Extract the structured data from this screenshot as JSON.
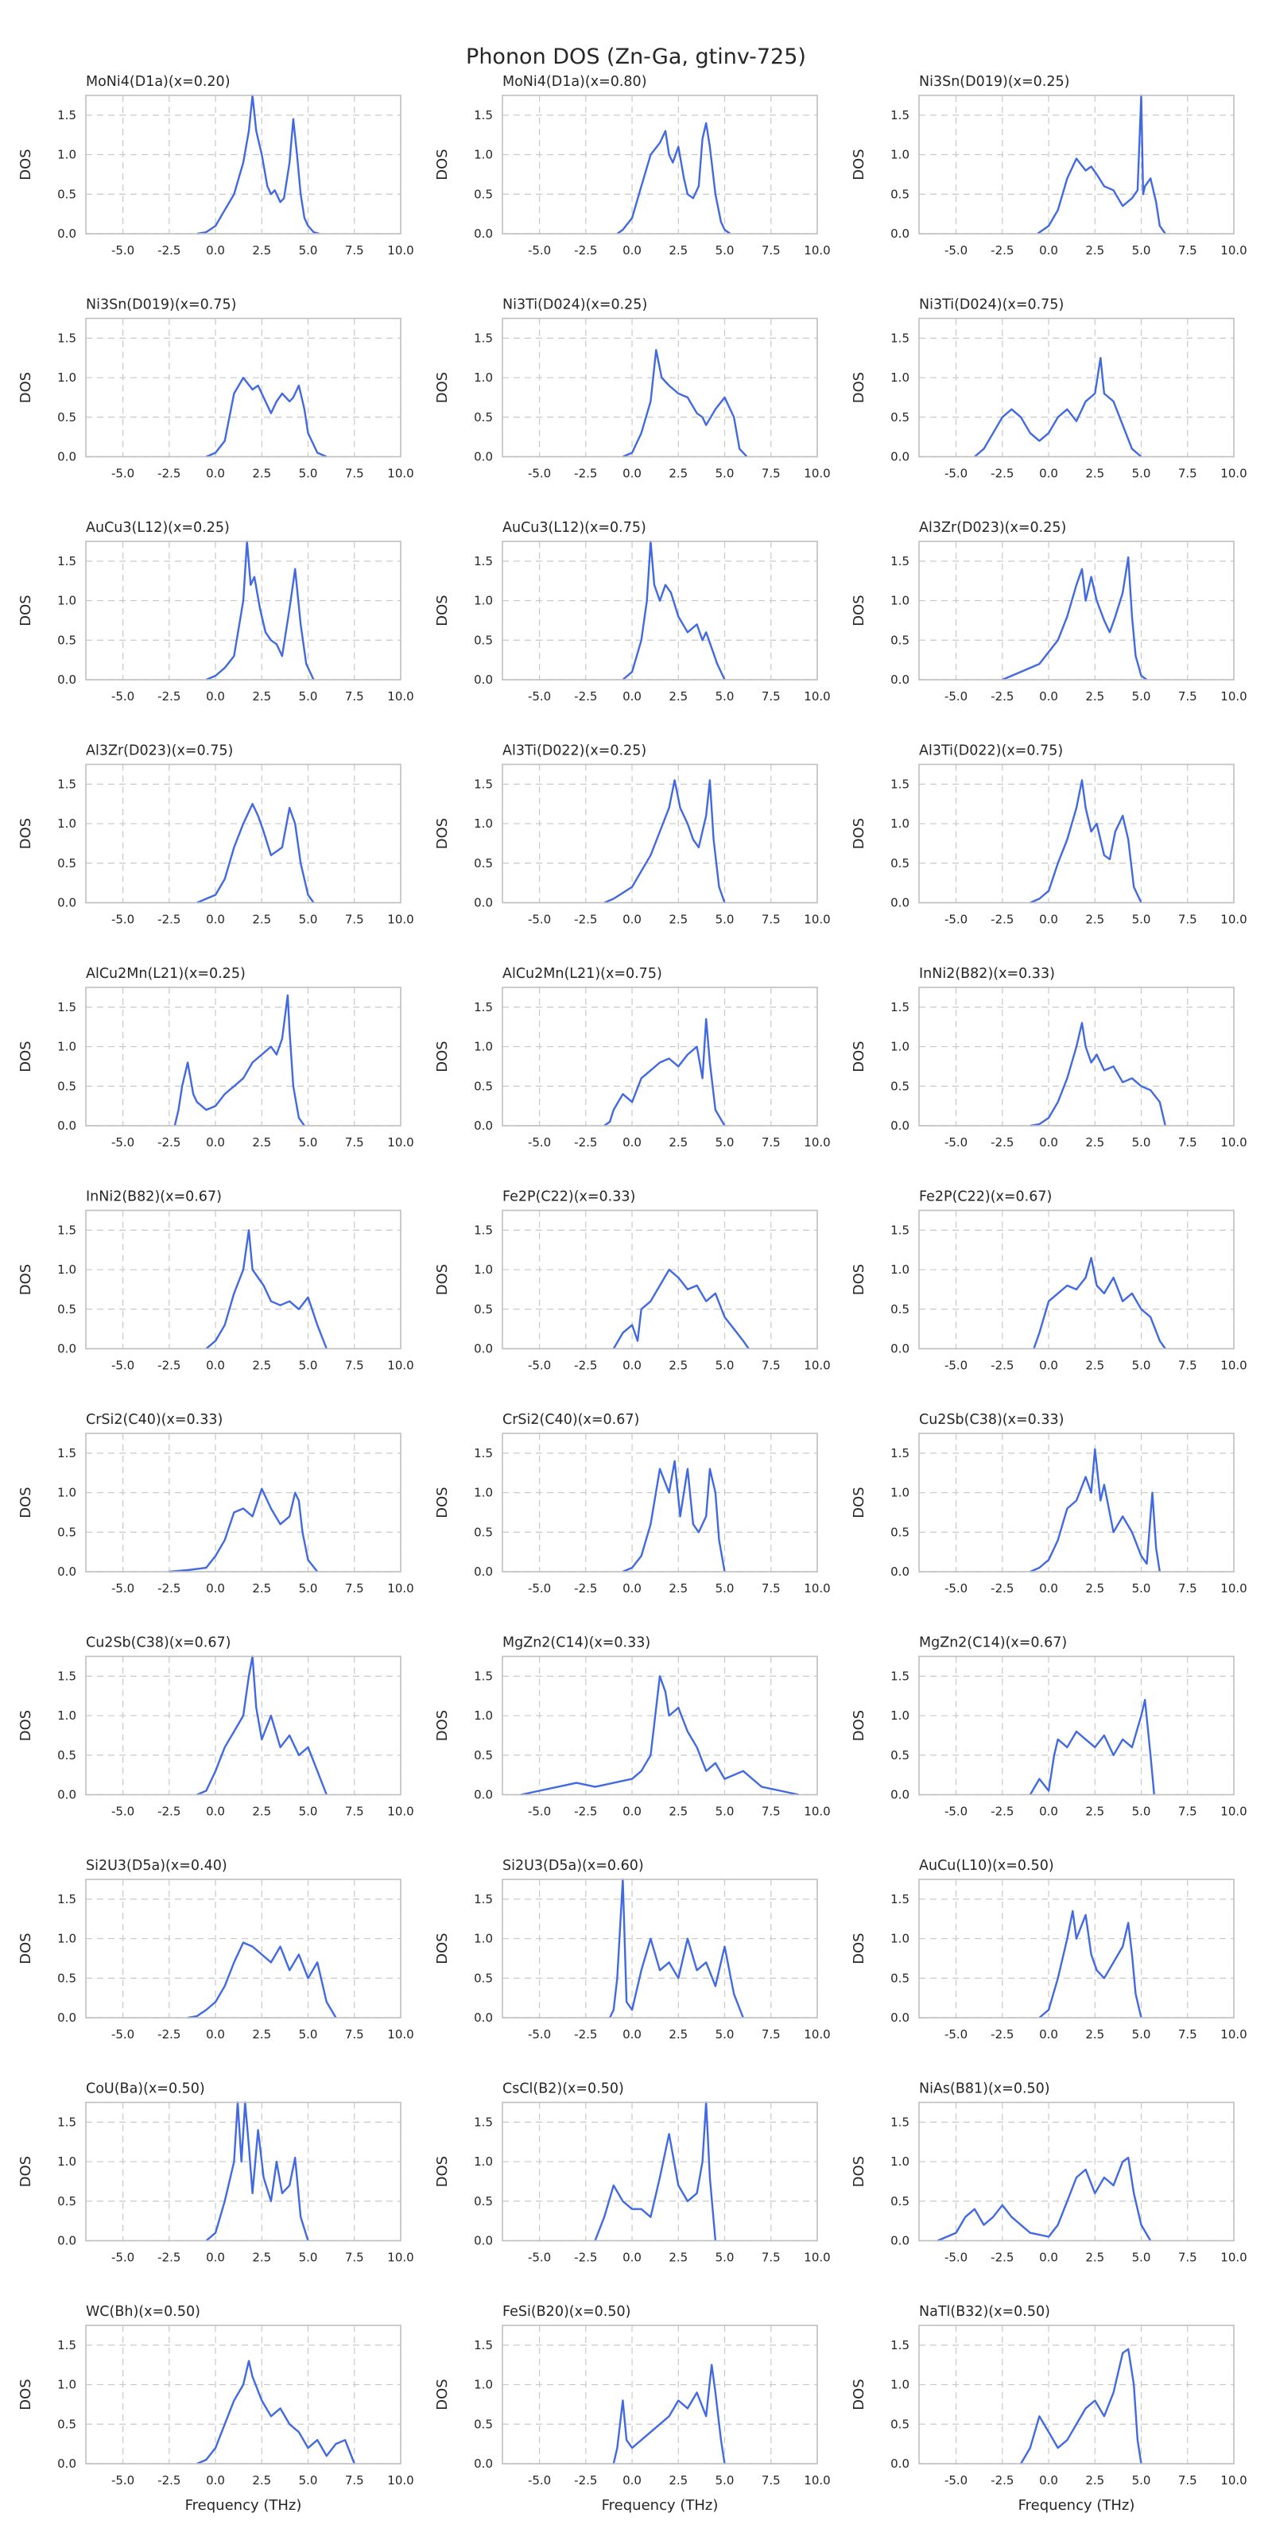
{
  "title": "Phonon DOS (Zn-Ga, gtinv-725)",
  "shared": {
    "xlabel": "Frequency (THz)",
    "ylabel": "DOS",
    "xlim": [
      -7,
      10
    ],
    "ylim": [
      0,
      1.75
    ],
    "xticks": [
      -5.0,
      -2.5,
      0.0,
      2.5,
      5.0,
      7.5,
      10.0
    ],
    "yticks": [
      0.0,
      0.5,
      1.0,
      1.5
    ],
    "grid": true,
    "line_color": "#4169e1"
  },
  "chart_data": [
    {
      "type": "line",
      "title": "MoNi4(D1a)(x=0.20)",
      "x": [
        -1.0,
        -0.5,
        0.0,
        0.5,
        1.0,
        1.5,
        1.8,
        2.0,
        2.2,
        2.5,
        2.8,
        3.0,
        3.2,
        3.5,
        3.7,
        4.0,
        4.2,
        4.4,
        4.6,
        4.8,
        5.0,
        5.3,
        5.6
      ],
      "y": [
        0,
        0.02,
        0.1,
        0.3,
        0.5,
        0.9,
        1.3,
        1.75,
        1.3,
        1.0,
        0.6,
        0.5,
        0.55,
        0.4,
        0.45,
        0.9,
        1.45,
        1.0,
        0.5,
        0.2,
        0.1,
        0.02,
        0
      ]
    },
    {
      "type": "line",
      "title": "MoNi4(D1a)(x=0.80)",
      "x": [
        -0.8,
        -0.5,
        0.0,
        0.5,
        1.0,
        1.5,
        1.8,
        2.0,
        2.2,
        2.5,
        2.8,
        3.0,
        3.3,
        3.6,
        3.8,
        4.0,
        4.2,
        4.5,
        4.8,
        5.0,
        5.3
      ],
      "y": [
        0,
        0.05,
        0.2,
        0.6,
        1.0,
        1.15,
        1.3,
        1.0,
        0.9,
        1.1,
        0.7,
        0.5,
        0.45,
        0.6,
        1.2,
        1.4,
        1.1,
        0.5,
        0.15,
        0.05,
        0
      ]
    },
    {
      "type": "line",
      "title": "Ni3Sn(D019)(x=0.25)",
      "x": [
        -0.6,
        0.0,
        0.5,
        1.0,
        1.5,
        2.0,
        2.3,
        2.6,
        3.0,
        3.5,
        4.0,
        4.5,
        4.8,
        5.0,
        5.1,
        5.2,
        5.5,
        5.8,
        6.0,
        6.3
      ],
      "y": [
        0,
        0.1,
        0.3,
        0.7,
        0.95,
        0.8,
        0.85,
        0.75,
        0.6,
        0.55,
        0.35,
        0.45,
        0.55,
        1.75,
        0.5,
        0.6,
        0.7,
        0.4,
        0.1,
        0
      ]
    },
    {
      "type": "line",
      "title": "Ni3Sn(D019)(x=0.75)",
      "x": [
        -0.5,
        0.0,
        0.5,
        1.0,
        1.5,
        2.0,
        2.3,
        2.6,
        3.0,
        3.3,
        3.6,
        4.0,
        4.2,
        4.5,
        4.8,
        5.0,
        5.5,
        6.0
      ],
      "y": [
        0,
        0.05,
        0.2,
        0.8,
        1.0,
        0.85,
        0.9,
        0.75,
        0.55,
        0.7,
        0.8,
        0.7,
        0.75,
        0.9,
        0.6,
        0.3,
        0.05,
        0
      ]
    },
    {
      "type": "line",
      "title": "Ni3Ti(D024)(x=0.25)",
      "x": [
        -0.5,
        0.0,
        0.5,
        1.0,
        1.3,
        1.6,
        2.0,
        2.5,
        3.0,
        3.5,
        3.8,
        4.0,
        4.5,
        5.0,
        5.5,
        5.8,
        6.2
      ],
      "y": [
        0,
        0.05,
        0.3,
        0.7,
        1.35,
        1.0,
        0.9,
        0.8,
        0.75,
        0.55,
        0.5,
        0.4,
        0.6,
        0.75,
        0.5,
        0.1,
        0
      ]
    },
    {
      "type": "line",
      "title": "Ni3Ti(D024)(x=0.75)",
      "x": [
        -4.0,
        -3.5,
        -3.0,
        -2.5,
        -2.0,
        -1.5,
        -1.0,
        -0.5,
        0.0,
        0.5,
        1.0,
        1.5,
        2.0,
        2.5,
        2.8,
        3.0,
        3.5,
        4.0,
        4.5,
        5.0
      ],
      "y": [
        0,
        0.1,
        0.3,
        0.5,
        0.6,
        0.5,
        0.3,
        0.2,
        0.3,
        0.5,
        0.6,
        0.45,
        0.7,
        0.8,
        1.25,
        0.8,
        0.7,
        0.4,
        0.1,
        0
      ]
    },
    {
      "type": "line",
      "title": "AuCu3(L12)(x=0.25)",
      "x": [
        -0.5,
        0.0,
        0.5,
        1.0,
        1.5,
        1.7,
        1.9,
        2.1,
        2.4,
        2.7,
        3.0,
        3.3,
        3.6,
        4.0,
        4.3,
        4.6,
        4.9,
        5.3
      ],
      "y": [
        0,
        0.05,
        0.15,
        0.3,
        1.0,
        1.75,
        1.2,
        1.3,
        0.9,
        0.6,
        0.5,
        0.45,
        0.3,
        0.9,
        1.4,
        0.7,
        0.2,
        0
      ]
    },
    {
      "type": "line",
      "title": "AuCu3(L12)(x=0.75)",
      "x": [
        -0.5,
        0.0,
        0.5,
        0.8,
        1.0,
        1.2,
        1.5,
        1.8,
        2.1,
        2.5,
        3.0,
        3.5,
        3.8,
        4.0,
        4.3,
        4.6,
        5.0
      ],
      "y": [
        0,
        0.1,
        0.5,
        1.0,
        1.75,
        1.2,
        1.0,
        1.2,
        1.1,
        0.8,
        0.6,
        0.7,
        0.5,
        0.6,
        0.4,
        0.2,
        0
      ]
    },
    {
      "type": "line",
      "title": "Al3Zr(D023)(x=0.25)",
      "x": [
        -2.5,
        -1.5,
        -0.5,
        0.5,
        1.0,
        1.5,
        1.8,
        2.0,
        2.3,
        2.6,
        3.0,
        3.3,
        3.6,
        4.0,
        4.3,
        4.5,
        4.7,
        5.0,
        5.3
      ],
      "y": [
        0,
        0.1,
        0.2,
        0.5,
        0.8,
        1.2,
        1.4,
        1.0,
        1.3,
        1.0,
        0.75,
        0.6,
        0.8,
        1.1,
        1.55,
        0.8,
        0.3,
        0.05,
        0
      ]
    },
    {
      "type": "line",
      "title": "Al3Zr(D023)(x=0.75)",
      "x": [
        -1.0,
        -0.5,
        0.0,
        0.5,
        1.0,
        1.5,
        2.0,
        2.3,
        2.6,
        3.0,
        3.3,
        3.6,
        4.0,
        4.3,
        4.6,
        5.0,
        5.3
      ],
      "y": [
        0,
        0.05,
        0.1,
        0.3,
        0.7,
        1.0,
        1.25,
        1.1,
        0.9,
        0.6,
        0.65,
        0.7,
        1.2,
        1.0,
        0.5,
        0.1,
        0
      ]
    },
    {
      "type": "line",
      "title": "Al3Ti(D022)(x=0.25)",
      "x": [
        -1.5,
        -1.0,
        0.0,
        0.5,
        1.0,
        1.5,
        2.0,
        2.3,
        2.6,
        3.0,
        3.3,
        3.6,
        4.0,
        4.2,
        4.4,
        4.7,
        5.0
      ],
      "y": [
        0,
        0.05,
        0.2,
        0.4,
        0.6,
        0.9,
        1.2,
        1.55,
        1.2,
        1.0,
        0.8,
        0.7,
        1.1,
        1.55,
        0.8,
        0.2,
        0
      ]
    },
    {
      "type": "line",
      "title": "Al3Ti(D022)(x=0.75)",
      "x": [
        -1.0,
        -0.5,
        0.0,
        0.5,
        1.0,
        1.5,
        1.8,
        2.0,
        2.3,
        2.6,
        3.0,
        3.3,
        3.6,
        4.0,
        4.3,
        4.6,
        5.0
      ],
      "y": [
        0,
        0.05,
        0.15,
        0.5,
        0.8,
        1.2,
        1.55,
        1.2,
        0.9,
        1.0,
        0.6,
        0.55,
        0.9,
        1.1,
        0.8,
        0.2,
        0
      ]
    },
    {
      "type": "line",
      "title": "AlCu2Mn(L21)(x=0.25)",
      "x": [
        -2.2,
        -2.0,
        -1.8,
        -1.5,
        -1.2,
        -1.0,
        -0.5,
        0.0,
        0.5,
        1.0,
        1.5,
        2.0,
        2.5,
        3.0,
        3.3,
        3.6,
        3.9,
        4.0,
        4.2,
        4.5,
        4.8
      ],
      "y": [
        0,
        0.2,
        0.5,
        0.8,
        0.4,
        0.3,
        0.2,
        0.25,
        0.4,
        0.5,
        0.6,
        0.8,
        0.9,
        1.0,
        0.9,
        1.1,
        1.65,
        1.2,
        0.5,
        0.1,
        0
      ]
    },
    {
      "type": "line",
      "title": "AlCu2Mn(L21)(x=0.75)",
      "x": [
        -1.5,
        -1.2,
        -1.0,
        -0.5,
        0.0,
        0.5,
        1.0,
        1.5,
        2.0,
        2.5,
        3.0,
        3.5,
        3.8,
        4.0,
        4.2,
        4.5,
        5.0
      ],
      "y": [
        0,
        0.05,
        0.2,
        0.4,
        0.3,
        0.6,
        0.7,
        0.8,
        0.85,
        0.75,
        0.9,
        1.0,
        0.6,
        1.35,
        0.8,
        0.2,
        0
      ]
    },
    {
      "type": "line",
      "title": "InNi2(B82)(x=0.33)",
      "x": [
        -1.0,
        -0.5,
        0.0,
        0.5,
        1.0,
        1.5,
        1.8,
        2.0,
        2.3,
        2.6,
        3.0,
        3.5,
        4.0,
        4.5,
        5.0,
        5.5,
        6.0,
        6.3
      ],
      "y": [
        0,
        0.02,
        0.1,
        0.3,
        0.6,
        1.0,
        1.3,
        1.0,
        0.8,
        0.9,
        0.7,
        0.75,
        0.55,
        0.6,
        0.5,
        0.45,
        0.3,
        0
      ]
    },
    {
      "type": "line",
      "title": "InNi2(B82)(x=0.67)",
      "x": [
        -0.5,
        0.0,
        0.5,
        1.0,
        1.5,
        1.8,
        2.0,
        2.3,
        2.6,
        3.0,
        3.5,
        4.0,
        4.5,
        5.0,
        5.5,
        6.0
      ],
      "y": [
        0,
        0.1,
        0.3,
        0.7,
        1.0,
        1.5,
        1.0,
        0.9,
        0.8,
        0.6,
        0.55,
        0.6,
        0.5,
        0.65,
        0.3,
        0
      ]
    },
    {
      "type": "line",
      "title": "Fe2P(C22)(x=0.33)",
      "x": [
        -1.0,
        -0.5,
        0.0,
        0.3,
        0.5,
        1.0,
        1.5,
        2.0,
        2.5,
        3.0,
        3.5,
        4.0,
        4.5,
        5.0,
        5.5,
        6.0,
        6.3
      ],
      "y": [
        0,
        0.2,
        0.3,
        0.1,
        0.5,
        0.6,
        0.8,
        1.0,
        0.9,
        0.75,
        0.8,
        0.6,
        0.7,
        0.4,
        0.25,
        0.1,
        0
      ]
    },
    {
      "type": "line",
      "title": "Fe2P(C22)(x=0.67)",
      "x": [
        -0.8,
        -0.5,
        0.0,
        0.5,
        1.0,
        1.5,
        2.0,
        2.3,
        2.6,
        3.0,
        3.5,
        4.0,
        4.5,
        5.0,
        5.5,
        6.0,
        6.3
      ],
      "y": [
        0,
        0.2,
        0.6,
        0.7,
        0.8,
        0.75,
        0.9,
        1.15,
        0.8,
        0.7,
        0.9,
        0.6,
        0.7,
        0.5,
        0.4,
        0.1,
        0
      ]
    },
    {
      "type": "line",
      "title": "CrSi2(C40)(x=0.33)",
      "x": [
        -2.5,
        -1.5,
        -0.5,
        0.0,
        0.5,
        1.0,
        1.5,
        2.0,
        2.5,
        3.0,
        3.5,
        4.0,
        4.3,
        4.5,
        4.7,
        5.0,
        5.5
      ],
      "y": [
        0,
        0.02,
        0.05,
        0.2,
        0.4,
        0.75,
        0.8,
        0.7,
        1.05,
        0.8,
        0.6,
        0.7,
        1.0,
        0.9,
        0.5,
        0.15,
        0
      ]
    },
    {
      "type": "line",
      "title": "CrSi2(C40)(x=0.67)",
      "x": [
        -0.5,
        0.0,
        0.5,
        1.0,
        1.5,
        2.0,
        2.3,
        2.6,
        3.0,
        3.3,
        3.6,
        4.0,
        4.2,
        4.5,
        4.7,
        5.0
      ],
      "y": [
        0,
        0.05,
        0.2,
        0.6,
        1.3,
        1.0,
        1.4,
        0.7,
        1.3,
        0.6,
        0.5,
        0.7,
        1.3,
        1.0,
        0.4,
        0
      ]
    },
    {
      "type": "line",
      "title": "Cu2Sb(C38)(x=0.33)",
      "x": [
        -1.0,
        -0.5,
        0.0,
        0.5,
        1.0,
        1.5,
        2.0,
        2.3,
        2.5,
        2.8,
        3.0,
        3.5,
        4.0,
        4.5,
        5.0,
        5.3,
        5.6,
        5.8,
        6.0
      ],
      "y": [
        0,
        0.05,
        0.15,
        0.4,
        0.8,
        0.9,
        1.2,
        1.0,
        1.55,
        0.9,
        1.1,
        0.5,
        0.7,
        0.5,
        0.2,
        0.1,
        1.0,
        0.3,
        0
      ]
    },
    {
      "type": "line",
      "title": "Cu2Sb(C38)(x=0.67)",
      "x": [
        -1.0,
        -0.5,
        0.0,
        0.5,
        1.0,
        1.5,
        1.8,
        2.0,
        2.2,
        2.5,
        3.0,
        3.5,
        4.0,
        4.5,
        5.0,
        5.5,
        6.0
      ],
      "y": [
        0,
        0.05,
        0.3,
        0.6,
        0.8,
        1.0,
        1.5,
        1.75,
        1.1,
        0.7,
        1.0,
        0.6,
        0.75,
        0.5,
        0.6,
        0.3,
        0
      ]
    },
    {
      "type": "line",
      "title": "MgZn2(C14)(x=0.33)",
      "x": [
        -6.0,
        -5.0,
        -4.0,
        -3.0,
        -2.0,
        -1.0,
        0.0,
        0.5,
        1.0,
        1.5,
        1.8,
        2.0,
        2.5,
        3.0,
        3.5,
        4.0,
        4.5,
        5.0,
        6.0,
        7.0,
        8.0,
        9.0
      ],
      "y": [
        0,
        0.05,
        0.1,
        0.15,
        0.1,
        0.15,
        0.2,
        0.3,
        0.5,
        1.5,
        1.3,
        1.0,
        1.1,
        0.8,
        0.6,
        0.3,
        0.4,
        0.2,
        0.3,
        0.1,
        0.05,
        0
      ]
    },
    {
      "type": "line",
      "title": "MgZn2(C14)(x=0.67)",
      "x": [
        -1.0,
        -0.5,
        0.0,
        0.3,
        0.5,
        1.0,
        1.5,
        2.0,
        2.5,
        3.0,
        3.5,
        4.0,
        4.5,
        5.0,
        5.2,
        5.5,
        5.7
      ],
      "y": [
        0,
        0.2,
        0.05,
        0.5,
        0.7,
        0.6,
        0.8,
        0.7,
        0.6,
        0.75,
        0.5,
        0.7,
        0.6,
        1.0,
        1.2,
        0.5,
        0
      ]
    },
    {
      "type": "line",
      "title": "Si2U3(D5a)(x=0.40)",
      "x": [
        -1.5,
        -1.0,
        -0.5,
        0.0,
        0.5,
        1.0,
        1.5,
        2.0,
        2.5,
        3.0,
        3.5,
        4.0,
        4.5,
        5.0,
        5.5,
        6.0,
        6.5
      ],
      "y": [
        0,
        0.02,
        0.1,
        0.2,
        0.4,
        0.7,
        0.95,
        0.9,
        0.8,
        0.7,
        0.9,
        0.6,
        0.8,
        0.5,
        0.7,
        0.2,
        0
      ]
    },
    {
      "type": "line",
      "title": "Si2U3(D5a)(x=0.60)",
      "x": [
        -1.2,
        -1.0,
        -0.8,
        -0.5,
        -0.3,
        0.0,
        0.5,
        1.0,
        1.5,
        2.0,
        2.5,
        3.0,
        3.5,
        4.0,
        4.5,
        5.0,
        5.5,
        6.0
      ],
      "y": [
        0,
        0.1,
        0.5,
        1.75,
        0.2,
        0.1,
        0.6,
        1.0,
        0.6,
        0.7,
        0.5,
        1.0,
        0.6,
        0.7,
        0.4,
        0.9,
        0.3,
        0
      ]
    },
    {
      "type": "line",
      "title": "AuCu(L10)(x=0.50)",
      "x": [
        -0.5,
        0.0,
        0.5,
        1.0,
        1.3,
        1.5,
        2.0,
        2.3,
        2.6,
        3.0,
        3.5,
        4.0,
        4.3,
        4.5,
        4.7,
        5.0
      ],
      "y": [
        0,
        0.1,
        0.5,
        1.0,
        1.35,
        1.0,
        1.3,
        0.8,
        0.6,
        0.5,
        0.7,
        0.9,
        1.2,
        0.8,
        0.3,
        0
      ]
    },
    {
      "type": "line",
      "title": "CoU(Ba)(x=0.50)",
      "x": [
        -0.5,
        0.0,
        0.5,
        1.0,
        1.2,
        1.4,
        1.6,
        1.8,
        2.0,
        2.3,
        2.6,
        3.0,
        3.3,
        3.6,
        4.0,
        4.3,
        4.6,
        5.0
      ],
      "y": [
        0,
        0.1,
        0.5,
        1.0,
        1.75,
        1.0,
        1.75,
        1.2,
        0.6,
        1.4,
        0.8,
        0.5,
        1.0,
        0.6,
        0.7,
        1.05,
        0.3,
        0
      ]
    },
    {
      "type": "line",
      "title": "CsCl(B2)(x=0.50)",
      "x": [
        -2.0,
        -1.5,
        -1.0,
        -0.5,
        0.0,
        0.5,
        1.0,
        1.5,
        2.0,
        2.5,
        3.0,
        3.5,
        3.8,
        4.0,
        4.2,
        4.5
      ],
      "y": [
        0,
        0.3,
        0.7,
        0.5,
        0.4,
        0.4,
        0.3,
        0.8,
        1.35,
        0.7,
        0.5,
        0.6,
        1.0,
        1.75,
        0.8,
        0
      ]
    },
    {
      "type": "line",
      "title": "NiAs(B81)(x=0.50)",
      "x": [
        -6.0,
        -5.0,
        -4.5,
        -4.0,
        -3.5,
        -3.0,
        -2.5,
        -2.0,
        -1.5,
        -1.0,
        0.0,
        0.5,
        1.0,
        1.5,
        2.0,
        2.5,
        3.0,
        3.5,
        4.0,
        4.3,
        4.6,
        5.0,
        5.5
      ],
      "y": [
        0,
        0.1,
        0.3,
        0.4,
        0.2,
        0.3,
        0.45,
        0.3,
        0.2,
        0.1,
        0.05,
        0.2,
        0.5,
        0.8,
        0.9,
        0.6,
        0.8,
        0.7,
        1.0,
        1.05,
        0.6,
        0.2,
        0
      ]
    },
    {
      "type": "line",
      "title": "WC(Bh)(x=0.50)",
      "x": [
        -1.0,
        -0.5,
        0.0,
        0.5,
        1.0,
        1.5,
        1.8,
        2.0,
        2.5,
        3.0,
        3.5,
        4.0,
        4.5,
        5.0,
        5.5,
        6.0,
        6.5,
        7.0,
        7.5
      ],
      "y": [
        0,
        0.05,
        0.2,
        0.5,
        0.8,
        1.0,
        1.3,
        1.1,
        0.8,
        0.6,
        0.7,
        0.5,
        0.4,
        0.2,
        0.3,
        0.1,
        0.25,
        0.3,
        0
      ]
    },
    {
      "type": "line",
      "title": "FeSi(B20)(x=0.50)",
      "x": [
        -1.0,
        -0.8,
        -0.5,
        -0.3,
        0.0,
        0.5,
        1.0,
        1.5,
        2.0,
        2.5,
        3.0,
        3.5,
        4.0,
        4.3,
        4.5,
        4.8,
        5.0
      ],
      "y": [
        0,
        0.2,
        0.8,
        0.3,
        0.2,
        0.3,
        0.4,
        0.5,
        0.6,
        0.8,
        0.7,
        0.9,
        0.6,
        1.25,
        0.9,
        0.3,
        0
      ]
    },
    {
      "type": "line",
      "title": "NaTl(B32)(x=0.50)",
      "x": [
        -1.5,
        -1.0,
        -0.5,
        0.0,
        0.5,
        1.0,
        1.5,
        2.0,
        2.5,
        3.0,
        3.5,
        4.0,
        4.3,
        4.6,
        4.8,
        5.0
      ],
      "y": [
        0,
        0.2,
        0.6,
        0.4,
        0.2,
        0.3,
        0.5,
        0.7,
        0.8,
        0.6,
        0.9,
        1.4,
        1.45,
        1.0,
        0.3,
        0
      ]
    }
  ]
}
